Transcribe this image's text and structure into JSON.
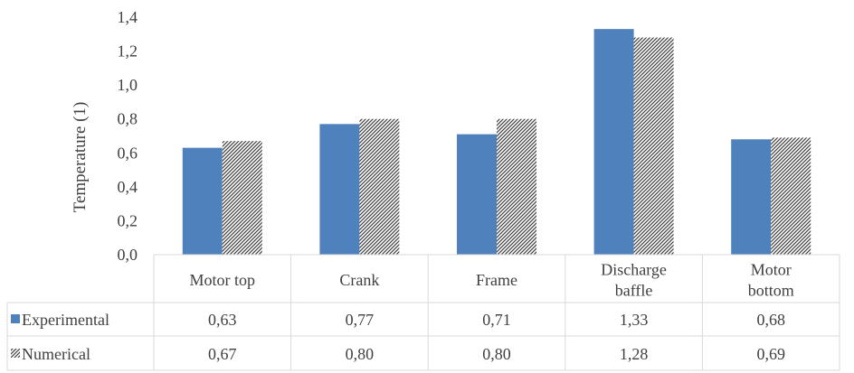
{
  "chart_data": {
    "type": "bar",
    "ylabel": "Temperature (1)",
    "ylim": [
      0,
      1.4
    ],
    "yticks": [
      "0,0",
      "0,2",
      "0,4",
      "0,6",
      "0,8",
      "1,0",
      "1,2",
      "1,4"
    ],
    "grid": false,
    "legend": "data-table-left",
    "categories": [
      "Motor top",
      "Crank",
      "Frame",
      "Discharge baffle",
      "Motor bottom"
    ],
    "series": [
      {
        "name": "Experimental",
        "values": [
          0.63,
          0.77,
          0.71,
          1.33,
          0.68
        ],
        "labels": [
          "0,63",
          "0,77",
          "0,71",
          "1,33",
          "0,68"
        ],
        "color": "#4f81bd",
        "pattern": "solid"
      },
      {
        "name": "Numerical",
        "values": [
          0.67,
          0.8,
          0.8,
          1.28,
          0.69
        ],
        "labels": [
          "0,67",
          "0,80",
          "0,80",
          "1,28",
          "0,69"
        ],
        "color": "#404040",
        "pattern": "diagonal-hatch"
      }
    ]
  }
}
